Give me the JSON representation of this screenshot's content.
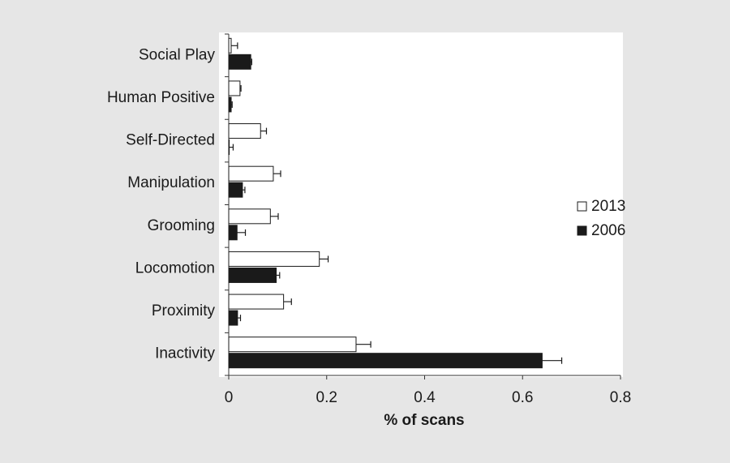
{
  "chart_data": {
    "type": "hbar",
    "categories": [
      "Social Play",
      "Human Positive",
      "Self-Directed",
      "Manipulation",
      "Grooming",
      "Locomotion",
      "Proximity",
      "Inactivity"
    ],
    "series": [
      {
        "name": "2013",
        "color": "#ffffff",
        "values": [
          0.005,
          0.023,
          0.065,
          0.091,
          0.085,
          0.185,
          0.112,
          0.26
        ],
        "errors": [
          0.013,
          0.002,
          0.012,
          0.015,
          0.016,
          0.018,
          0.016,
          0.03
        ]
      },
      {
        "name": "2006",
        "color": "#1a1a1a",
        "values": [
          0.045,
          0.005,
          0.001,
          0.028,
          0.017,
          0.097,
          0.018,
          0.64
        ],
        "errors": [
          0.002,
          0.002,
          0.008,
          0.005,
          0.017,
          0.007,
          0.006,
          0.04
        ]
      }
    ],
    "xlabel": "% of scans",
    "xlim": [
      0,
      0.8
    ],
    "xticks": [
      0,
      0.2,
      0.4,
      0.6,
      0.8
    ],
    "legend": "right"
  }
}
